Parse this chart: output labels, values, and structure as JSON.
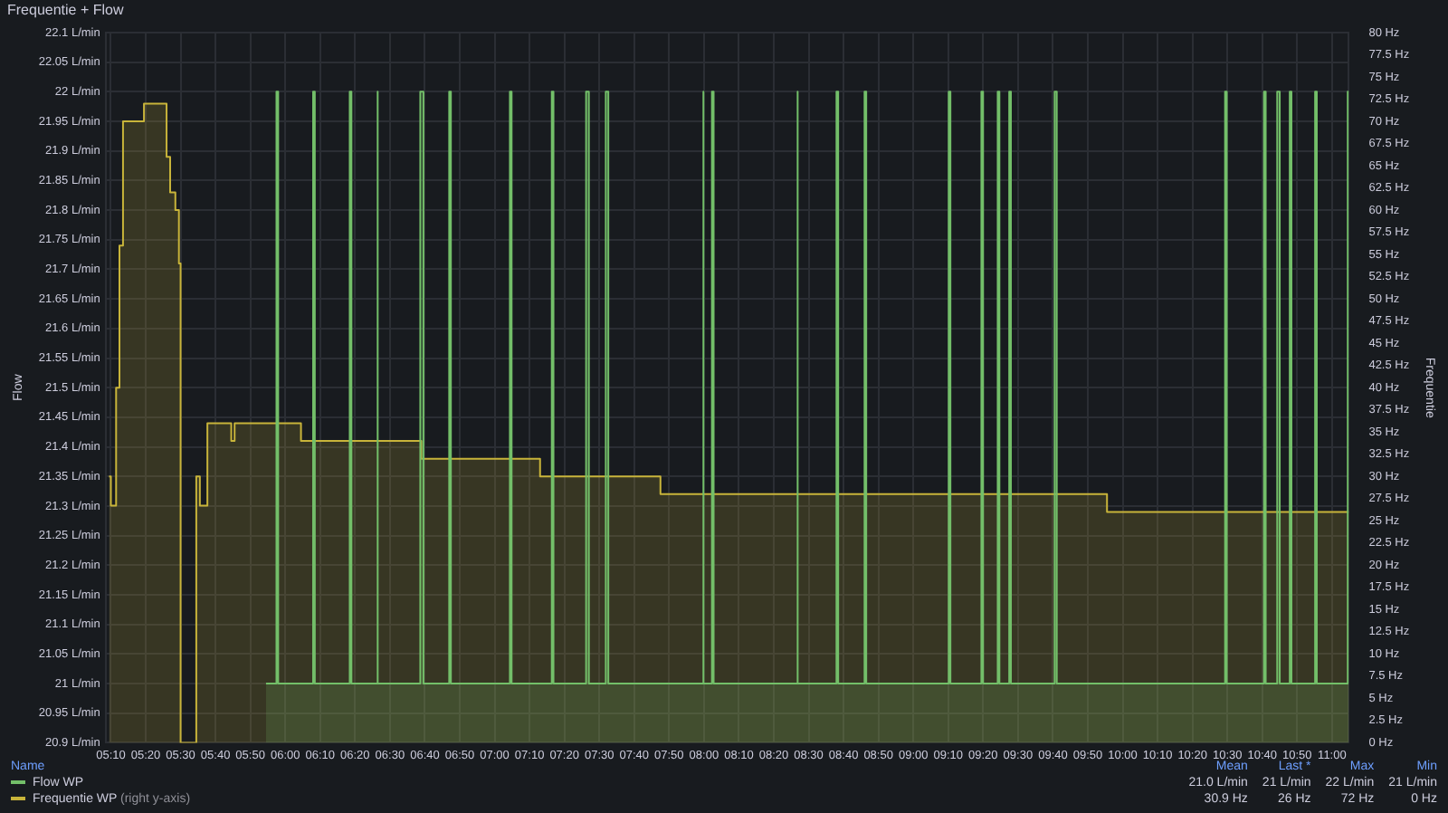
{
  "chart_data": {
    "type": "area",
    "title": "Frequentie + Flow",
    "ylabel": "Flow",
    "y2label": "Frequentie",
    "xlim": [
      5.142,
      11.08
    ],
    "xticks": [
      {
        "value": 5.1667,
        "label": "05:10"
      },
      {
        "value": 5.3333,
        "label": "05:20"
      },
      {
        "value": 5.5,
        "label": "05:30"
      },
      {
        "value": 5.6667,
        "label": "05:40"
      },
      {
        "value": 5.8333,
        "label": "05:50"
      },
      {
        "value": 6,
        "label": "06:00"
      },
      {
        "value": 6.1667,
        "label": "06:10"
      },
      {
        "value": 6.3333,
        "label": "06:20"
      },
      {
        "value": 6.5,
        "label": "06:30"
      },
      {
        "value": 6.6667,
        "label": "06:40"
      },
      {
        "value": 6.8333,
        "label": "06:50"
      },
      {
        "value": 7,
        "label": "07:00"
      },
      {
        "value": 7.1667,
        "label": "07:10"
      },
      {
        "value": 7.3333,
        "label": "07:20"
      },
      {
        "value": 7.5,
        "label": "07:30"
      },
      {
        "value": 7.6667,
        "label": "07:40"
      },
      {
        "value": 7.8333,
        "label": "07:50"
      },
      {
        "value": 8,
        "label": "08:00"
      },
      {
        "value": 8.1667,
        "label": "08:10"
      },
      {
        "value": 8.3333,
        "label": "08:20"
      },
      {
        "value": 8.5,
        "label": "08:30"
      },
      {
        "value": 8.6667,
        "label": "08:40"
      },
      {
        "value": 8.8333,
        "label": "08:50"
      },
      {
        "value": 9,
        "label": "09:00"
      },
      {
        "value": 9.1667,
        "label": "09:10"
      },
      {
        "value": 9.3333,
        "label": "09:20"
      },
      {
        "value": 9.5,
        "label": "09:30"
      },
      {
        "value": 9.6667,
        "label": "09:40"
      },
      {
        "value": 9.8333,
        "label": "09:50"
      },
      {
        "value": 10,
        "label": "10:00"
      },
      {
        "value": 10.1667,
        "label": "10:10"
      },
      {
        "value": 10.3333,
        "label": "10:20"
      },
      {
        "value": 10.5,
        "label": "10:30"
      },
      {
        "value": 10.6667,
        "label": "10:40"
      },
      {
        "value": 10.8333,
        "label": "10:50"
      },
      {
        "value": 11,
        "label": "11:00"
      }
    ],
    "ylim": [
      20.9,
      22.1
    ],
    "yticks": [
      {
        "value": 20.9,
        "label": "20.9 L/min"
      },
      {
        "value": 20.95,
        "label": "20.95 L/min"
      },
      {
        "value": 21,
        "label": "21 L/min"
      },
      {
        "value": 21.05,
        "label": "21.05 L/min"
      },
      {
        "value": 21.1,
        "label": "21.1 L/min"
      },
      {
        "value": 21.15,
        "label": "21.15 L/min"
      },
      {
        "value": 21.2,
        "label": "21.2 L/min"
      },
      {
        "value": 21.25,
        "label": "21.25 L/min"
      },
      {
        "value": 21.3,
        "label": "21.3 L/min"
      },
      {
        "value": 21.35,
        "label": "21.35 L/min"
      },
      {
        "value": 21.4,
        "label": "21.4 L/min"
      },
      {
        "value": 21.45,
        "label": "21.45 L/min"
      },
      {
        "value": 21.5,
        "label": "21.5 L/min"
      },
      {
        "value": 21.55,
        "label": "21.55 L/min"
      },
      {
        "value": 21.6,
        "label": "21.6 L/min"
      },
      {
        "value": 21.65,
        "label": "21.65 L/min"
      },
      {
        "value": 21.7,
        "label": "21.7 L/min"
      },
      {
        "value": 21.75,
        "label": "21.75 L/min"
      },
      {
        "value": 21.8,
        "label": "21.8 L/min"
      },
      {
        "value": 21.85,
        "label": "21.85 L/min"
      },
      {
        "value": 21.9,
        "label": "21.9 L/min"
      },
      {
        "value": 21.95,
        "label": "21.95 L/min"
      },
      {
        "value": 22,
        "label": "22 L/min"
      },
      {
        "value": 22.05,
        "label": "22.05 L/min"
      },
      {
        "value": 22.1,
        "label": "22.1 L/min"
      }
    ],
    "y2lim": [
      0,
      80
    ],
    "y2ticks": [
      {
        "value": 0,
        "label": "0 Hz"
      },
      {
        "value": 2.5,
        "label": "2.5 Hz"
      },
      {
        "value": 5,
        "label": "5 Hz"
      },
      {
        "value": 7.5,
        "label": "7.5 Hz"
      },
      {
        "value": 10,
        "label": "10 Hz"
      },
      {
        "value": 12.5,
        "label": "12.5 Hz"
      },
      {
        "value": 15,
        "label": "15 Hz"
      },
      {
        "value": 17.5,
        "label": "17.5 Hz"
      },
      {
        "value": 20,
        "label": "20 Hz"
      },
      {
        "value": 22.5,
        "label": "22.5 Hz"
      },
      {
        "value": 25,
        "label": "25 Hz"
      },
      {
        "value": 27.5,
        "label": "27.5 Hz"
      },
      {
        "value": 30,
        "label": "30 Hz"
      },
      {
        "value": 32.5,
        "label": "32.5 Hz"
      },
      {
        "value": 35,
        "label": "35 Hz"
      },
      {
        "value": 37.5,
        "label": "37.5 Hz"
      },
      {
        "value": 40,
        "label": "40 Hz"
      },
      {
        "value": 42.5,
        "label": "42.5 Hz"
      },
      {
        "value": 45,
        "label": "45 Hz"
      },
      {
        "value": 47.5,
        "label": "47.5 Hz"
      },
      {
        "value": 50,
        "label": "50 Hz"
      },
      {
        "value": 52.5,
        "label": "52.5 Hz"
      },
      {
        "value": 55,
        "label": "55 Hz"
      },
      {
        "value": 57.5,
        "label": "57.5 Hz"
      },
      {
        "value": 60,
        "label": "60 Hz"
      },
      {
        "value": 62.5,
        "label": "62.5 Hz"
      },
      {
        "value": 65,
        "label": "65 Hz"
      },
      {
        "value": 67.5,
        "label": "67.5 Hz"
      },
      {
        "value": 70,
        "label": "70 Hz"
      },
      {
        "value": 72.5,
        "label": "72.5 Hz"
      },
      {
        "value": 75,
        "label": "75 Hz"
      },
      {
        "value": 77.5,
        "label": "77.5 Hz"
      },
      {
        "value": 80,
        "label": "80 Hz"
      }
    ],
    "grid": true,
    "legend": "bottom",
    "annotations": [
      "Name",
      "Mean",
      "Last *",
      "Max",
      "Min",
      "(right y-axis)",
      "21.0 L/min",
      "21 L/min",
      "22 L/min",
      "21 L/min",
      "30.9 Hz",
      "26 Hz",
      "72 Hz",
      "0 Hz"
    ],
    "series": [
      {
        "name": "Flow WP",
        "color": "#73bf69",
        "x": [
          5.908,
          5.958,
          5.958,
          5.966,
          5.966,
          6.133,
          6.133,
          6.141,
          6.141,
          6.308,
          6.308,
          6.316,
          6.316,
          6.436,
          6.436,
          6.444,
          6.444,
          6.645,
          6.645,
          6.66,
          6.66,
          6.783,
          6.783,
          6.791,
          6.791,
          7.073,
          7.073,
          7.081,
          7.081,
          7.273,
          7.273,
          7.281,
          7.281,
          7.437,
          7.437,
          7.45,
          7.45,
          7.531,
          7.531,
          7.543,
          7.543,
          7.992,
          7.992,
          8,
          8,
          8.038,
          8.038,
          8.046,
          8.046,
          8.442,
          8.442,
          8.45,
          8.45,
          8.633,
          8.633,
          8.641,
          8.641,
          8.767,
          8.767,
          8.775,
          8.775,
          9.169,
          9.169,
          9.177,
          9.177,
          9.325,
          9.325,
          9.333,
          9.333,
          9.403,
          9.403,
          9.411,
          9.411,
          9.458,
          9.458,
          9.466,
          9.466,
          9.675,
          9.675,
          9.685,
          9.685,
          10.489,
          10.489,
          10.497,
          10.497,
          10.675,
          10.675,
          10.683,
          10.683,
          10.738,
          10.738,
          10.75,
          10.75,
          10.798,
          10.798,
          10.806,
          10.806,
          10.919,
          10.919,
          10.927,
          10.927,
          11.075,
          11.075,
          11.08
        ],
        "values": [
          21,
          21,
          22,
          22,
          21,
          21,
          22,
          22,
          21,
          21,
          22,
          22,
          21,
          21,
          22,
          22,
          21,
          21,
          22,
          22,
          21,
          21,
          22,
          22,
          21,
          21,
          22,
          22,
          21,
          21,
          22,
          22,
          21,
          21,
          22,
          22,
          21,
          21,
          22,
          22,
          21,
          21,
          22,
          22,
          21,
          21,
          22,
          22,
          21,
          21,
          22,
          22,
          21,
          21,
          22,
          22,
          21,
          21,
          22,
          22,
          21,
          21,
          22,
          22,
          21,
          21,
          22,
          22,
          21,
          21,
          22,
          22,
          21,
          21,
          22,
          22,
          21,
          21,
          22,
          22,
          21,
          21,
          22,
          22,
          21,
          21,
          22,
          22,
          21,
          21,
          22,
          22,
          21,
          21,
          22,
          22,
          21,
          21,
          22,
          22,
          21,
          21,
          22,
          22
        ]
      },
      {
        "name": "Frequentie WP",
        "color": "#c8b43a",
        "axis": "y2",
        "x": [
          5.158,
          5.167,
          5.167,
          5.192,
          5.192,
          5.208,
          5.208,
          5.225,
          5.225,
          5.325,
          5.325,
          5.433,
          5.433,
          5.45,
          5.45,
          5.475,
          5.475,
          5.492,
          5.492,
          5.5,
          5.5,
          5.575,
          5.575,
          5.592,
          5.592,
          5.628,
          5.628,
          5.742,
          5.742,
          5.758,
          5.758,
          6.075,
          6.075,
          6.65,
          6.65,
          7.217,
          7.217,
          7.792,
          7.792,
          9.925,
          9.925,
          11.08
        ],
        "values": [
          30,
          30,
          26.7,
          26.7,
          40,
          40,
          56,
          56,
          70,
          70,
          72,
          72,
          66,
          66,
          62,
          62,
          60,
          60,
          54,
          54,
          0,
          0,
          30,
          30,
          26.7,
          26.7,
          36,
          36,
          34,
          34,
          36,
          36,
          34,
          34,
          32,
          32,
          30,
          30,
          28,
          28,
          26,
          26
        ]
      }
    ]
  }
}
